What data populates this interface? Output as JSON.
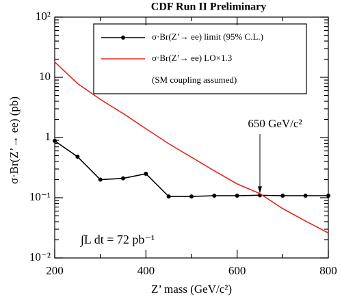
{
  "chart_data": {
    "type": "line",
    "title": "CDF Run II Preliminary",
    "x_label": "Z’ mass (GeV/c²)",
    "y_label": "σ·Br(Z’→ ee) (pb)",
    "x": [
      200,
      250,
      300,
      350,
      400,
      450,
      500,
      550,
      600,
      650,
      700,
      750,
      800
    ],
    "series": [
      {
        "name": "σ·Br(Z’→ ee) limit (95% C.L.)",
        "color": "#000000",
        "marker": true,
        "values": [
          0.88,
          0.48,
          0.2,
          0.21,
          0.25,
          0.105,
          0.105,
          0.108,
          0.108,
          0.11,
          0.108,
          0.108,
          0.108
        ]
      },
      {
        "name": "σ·Br(Z’→ ee) LO×1.3",
        "color": "#e8231d",
        "marker": false,
        "values": [
          18,
          7.9,
          4.3,
          2.5,
          1.4,
          0.79,
          0.47,
          0.28,
          0.17,
          0.117,
          0.066,
          0.041,
          0.026
        ]
      }
    ],
    "legend_note": "(SM coupling assumed)",
    "annotations": [
      {
        "text": "650 GeV/c²",
        "x": 650
      }
    ],
    "luminosity": "∫L dt = 72 pb⁻¹",
    "xlim": [
      200,
      800
    ],
    "xticks": [
      200,
      400,
      600,
      800
    ],
    "ylim": [
      0.01,
      100
    ],
    "ylog": true,
    "yticks": [
      {
        "value": 0.01,
        "label": "10⁻²"
      },
      {
        "value": 0.1,
        "label": "10⁻¹"
      },
      1,
      10,
      {
        "value": 100,
        "label": "10²"
      }
    ],
    "grid": false
  }
}
